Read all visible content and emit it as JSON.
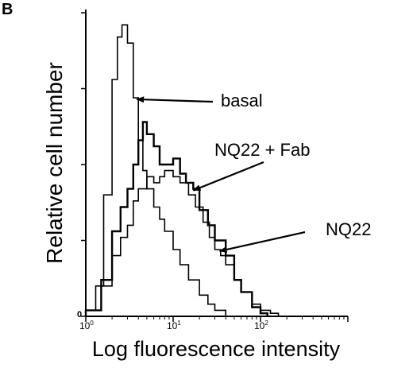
{
  "panel_label": "B",
  "chart_data": {
    "type": "line",
    "title": "",
    "xlabel": "Log fluorescence intensity",
    "ylabel": "Relative cell number",
    "x_scale": "log",
    "xlim": [
      1,
      1000
    ],
    "ylim": [
      0,
      1
    ],
    "x_tick_labels": [
      {
        "base": "10",
        "exp": "0"
      },
      {
        "base": "10",
        "exp": "1"
      },
      {
        "base": "10",
        "exp": "2"
      }
    ],
    "y_zero_label": "0",
    "series": [
      {
        "name": "basal",
        "x": [
          1.0,
          1.3,
          1.6,
          2.0,
          2.3,
          2.6,
          3.0,
          3.5,
          4.0,
          4.5,
          5.0,
          6.0,
          7.0,
          8.0,
          10.0,
          12.0,
          15.0,
          20.0,
          25.0,
          30.0,
          40.0
        ],
        "y": [
          0.02,
          0.1,
          0.4,
          0.78,
          0.92,
          0.96,
          0.9,
          0.72,
          0.58,
          0.48,
          0.42,
          0.36,
          0.32,
          0.28,
          0.22,
          0.17,
          0.12,
          0.07,
          0.04,
          0.02,
          0.0
        ]
      },
      {
        "name": "NQ22 + Fab",
        "x": [
          1.0,
          1.5,
          2.0,
          2.5,
          3.0,
          3.5,
          4.0,
          4.5,
          5.0,
          6.0,
          7.0,
          8.0,
          10.0,
          12.0,
          14.0,
          17.0,
          20.0,
          25.0,
          30.0,
          40.0,
          50.0,
          60.0,
          80.0,
          100.0,
          120.0
        ],
        "y": [
          0.02,
          0.12,
          0.28,
          0.36,
          0.42,
          0.5,
          0.58,
          0.64,
          0.6,
          0.56,
          0.5,
          0.5,
          0.52,
          0.47,
          0.44,
          0.42,
          0.35,
          0.3,
          0.25,
          0.2,
          0.12,
          0.08,
          0.03,
          0.01,
          0.0
        ]
      },
      {
        "name": "NQ22",
        "x": [
          1.0,
          1.5,
          2.0,
          2.5,
          3.0,
          3.5,
          4.0,
          5.0,
          6.0,
          7.0,
          8.0,
          10.0,
          12.0,
          15.0,
          18.0,
          22.0,
          26.0,
          30.0,
          35.0,
          40.0,
          50.0,
          60.0,
          80.0,
          100.0,
          130.0,
          160.0
        ],
        "y": [
          0.02,
          0.1,
          0.2,
          0.26,
          0.3,
          0.38,
          0.42,
          0.46,
          0.44,
          0.46,
          0.48,
          0.46,
          0.44,
          0.4,
          0.36,
          0.31,
          0.26,
          0.22,
          0.2,
          0.17,
          0.12,
          0.08,
          0.04,
          0.02,
          0.01,
          0.0
        ]
      }
    ],
    "annotations": [
      {
        "text": "basal",
        "series": "basal"
      },
      {
        "text": "NQ22 + Fab",
        "series": "NQ22 + Fab"
      },
      {
        "text": "NQ22",
        "series": "NQ22"
      }
    ],
    "grid": false,
    "legend": "none"
  }
}
